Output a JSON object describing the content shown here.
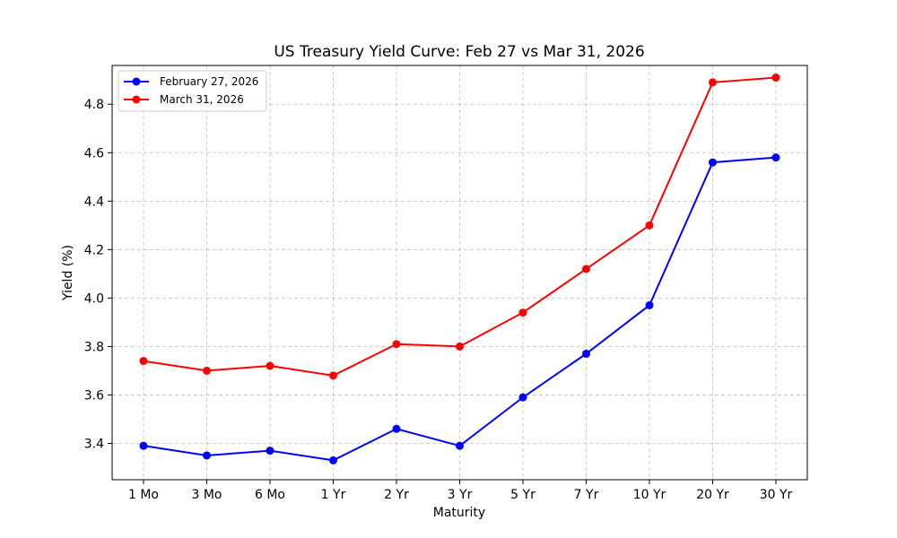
{
  "chart_data": {
    "type": "line",
    "title": "US Treasury Yield Curve: Feb 27 vs Mar 31, 2026",
    "xlabel": "Maturity",
    "ylabel": "Yield (%)",
    "categories": [
      "1 Mo",
      "3 Mo",
      "6 Mo",
      "1 Yr",
      "2 Yr",
      "3 Yr",
      "5 Yr",
      "7 Yr",
      "10 Yr",
      "20 Yr",
      "30 Yr"
    ],
    "yticks": [
      3.4,
      3.6,
      3.8,
      4.0,
      4.2,
      4.4,
      4.6,
      4.8
    ],
    "ytick_labels": [
      "3.4",
      "3.6",
      "3.8",
      "4.0",
      "4.2",
      "4.4",
      "4.6",
      "4.8"
    ],
    "ylim": [
      3.25,
      4.96
    ],
    "grid": true,
    "legend_position": "top-left",
    "series": [
      {
        "name": "February 27, 2026",
        "color": "#0000ff",
        "marker": "circle",
        "values": [
          3.39,
          3.35,
          3.37,
          3.33,
          3.46,
          3.39,
          3.59,
          3.77,
          3.97,
          4.56,
          4.58
        ]
      },
      {
        "name": "March 31, 2026",
        "color": "#ff0000",
        "marker": "circle",
        "values": [
          3.74,
          3.7,
          3.72,
          3.68,
          3.81,
          3.8,
          3.94,
          4.12,
          4.3,
          4.89,
          4.91
        ]
      }
    ]
  }
}
